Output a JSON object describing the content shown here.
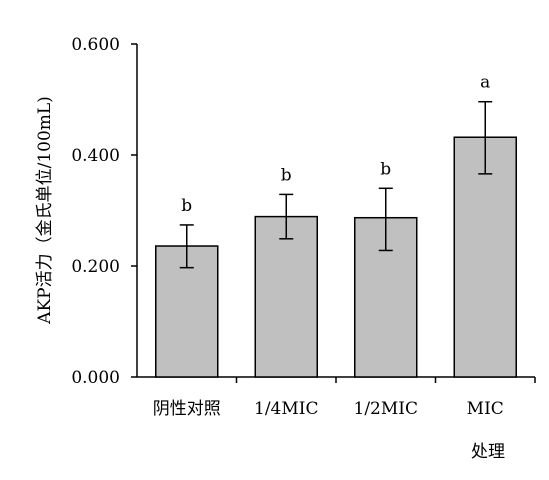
{
  "chart_data": {
    "type": "bar",
    "title": "",
    "xlabel": "处理",
    "ylabel": "AKP活力（金氏单位/100mL)",
    "categories": [
      "阴性对照",
      "1/4MIC",
      "1/2MIC",
      "MIC"
    ],
    "values": [
      0.236,
      0.289,
      0.287,
      0.432
    ],
    "error_low": [
      0.197,
      0.249,
      0.228,
      0.366
    ],
    "error_high": [
      0.274,
      0.329,
      0.34,
      0.496
    ],
    "significance_labels": [
      "b",
      "b",
      "b",
      "a"
    ],
    "yticks": [
      "0.000",
      "0.200",
      "0.400",
      "0.600"
    ],
    "ylim": [
      0,
      0.6
    ],
    "grid": false,
    "legend": "none",
    "bar_color": "#c0c0c0",
    "bar_edge_color": "#000000"
  }
}
